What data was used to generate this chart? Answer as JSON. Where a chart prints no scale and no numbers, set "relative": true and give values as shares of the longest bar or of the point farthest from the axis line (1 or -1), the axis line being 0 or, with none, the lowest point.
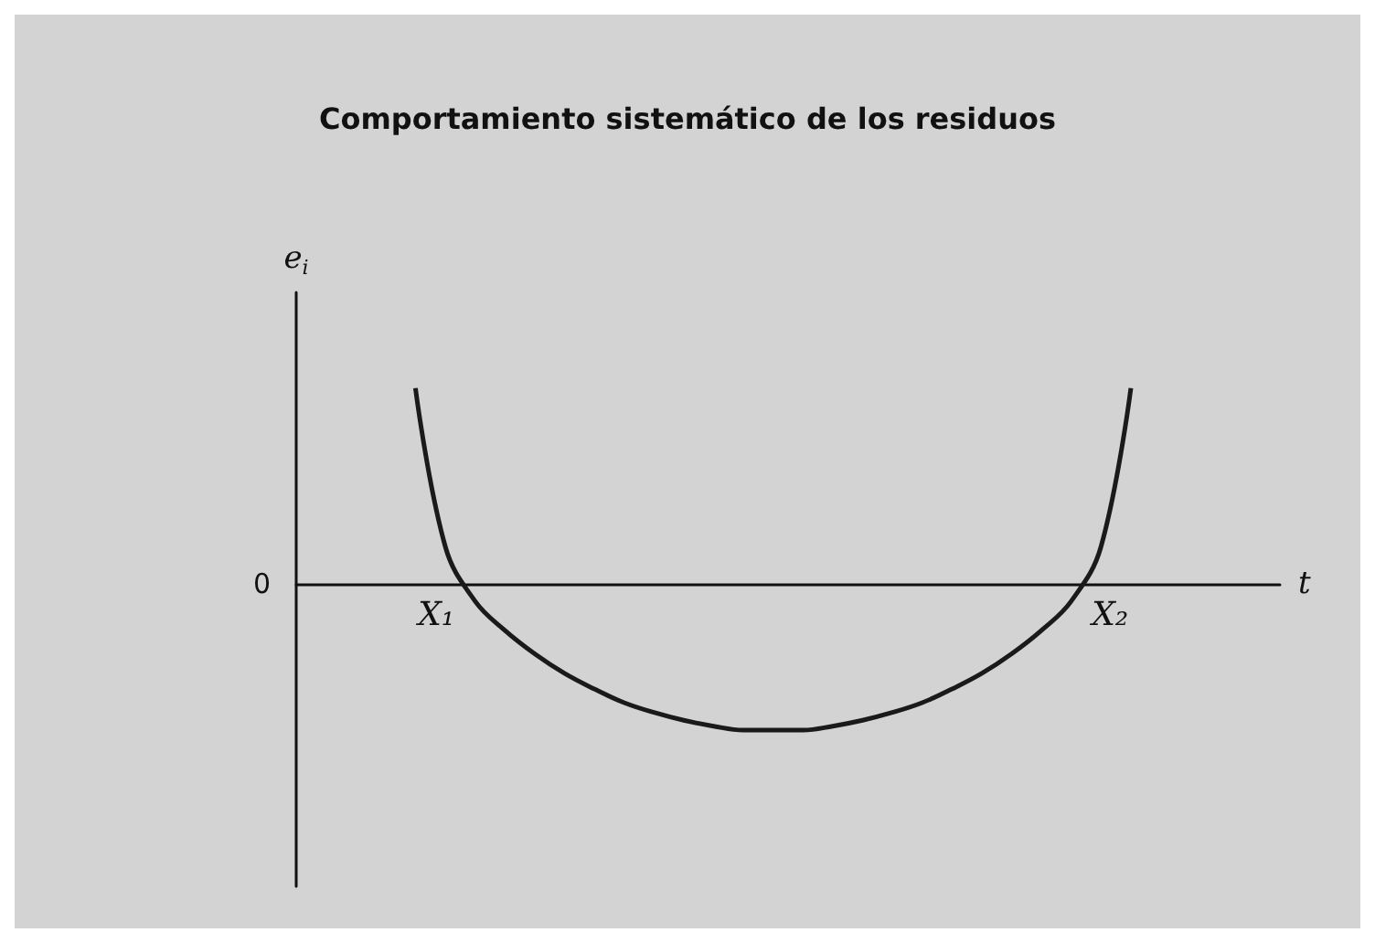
{
  "chart_data": {
    "type": "line",
    "title": "Comportamiento sistemático de los residuos",
    "xlabel": "t",
    "ylabel": "e$_{i}$",
    "relative": true,
    "color": "#1a1a1a",
    "categories": [
      null,
      null,
      null,
      null,
      null,
      null,
      null,
      null,
      null,
      null,
      null,
      null,
      null,
      null,
      null,
      null,
      null,
      null,
      null,
      null,
      null,
      null,
      null,
      null,
      null,
      null,
      null,
      null,
      null,
      null,
      null,
      null,
      null,
      null
    ],
    "values": [
      null,
      null,
      null,
      null,
      1.0,
      0.19,
      -0.09,
      -0.24,
      -0.36,
      -0.46,
      -0.54,
      -0.61,
      -0.66,
      -0.7,
      -0.73,
      -0.75,
      -0.75,
      -0.75,
      -0.73,
      -0.7,
      -0.66,
      -0.61,
      -0.54,
      -0.46,
      -0.36,
      -0.24,
      -0.09,
      0.19,
      1.0,
      null,
      null,
      null,
      null,
      null
    ],
    "annotations": [
      "0",
      "X₁",
      "X₂"
    ]
  }
}
